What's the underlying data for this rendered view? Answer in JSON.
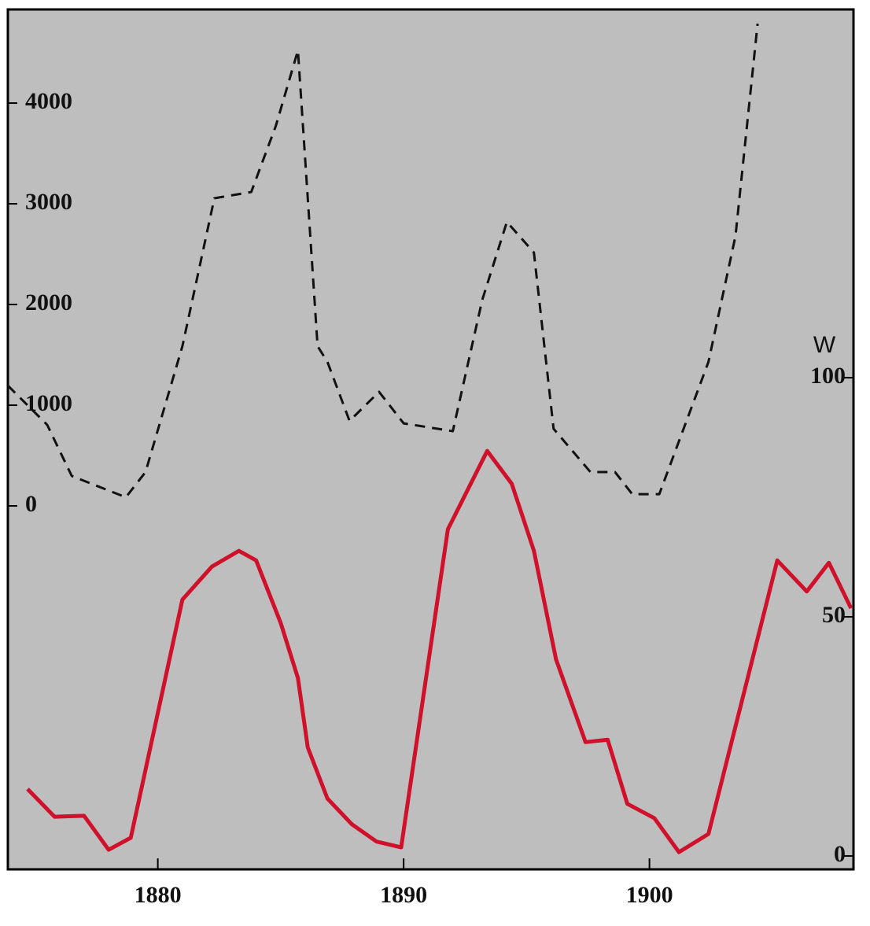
{
  "chart_data": {
    "type": "line",
    "y2label": "W",
    "xlim": [
      1873.9,
      1908.3
    ],
    "xticks": [
      1880,
      1890,
      1900
    ],
    "ylim": [
      -3609,
      4930
    ],
    "yticks": [
      0,
      1000,
      2000,
      3000,
      4000
    ],
    "y2lim": [
      -2.8,
      177
    ],
    "y2ticks": [
      0,
      50,
      100
    ],
    "series": [
      {
        "color": "#111111",
        "dashed": true,
        "x": [
          1873.9,
          1875.5,
          1876.5,
          1878.7,
          1879.5,
          1881.0,
          1882.3,
          1883.8,
          1884.8,
          1885.7,
          1886.5,
          1886.9,
          1887.8,
          1889.0,
          1890.0,
          1892.0,
          1893.2,
          1894.2,
          1895.3,
          1896.1,
          1897.6,
          1898.6,
          1899.3,
          1900.4,
          1902.4,
          1903.5,
          1904.4
        ],
        "values": [
          1195,
          805,
          297,
          86,
          336,
          1586,
          3055,
          3117,
          3773,
          4523,
          1586,
          1430,
          844,
          1133,
          820,
          742,
          2047,
          2820,
          2516,
          766,
          336,
          336,
          117,
          117,
          1430,
          2680,
          4789
        ]
      },
      {
        "color": "#d0112b",
        "dashed": false,
        "axis": "y2",
        "x": [
          1874.7,
          1875.8,
          1877.0,
          1878.0,
          1878.9,
          1881.0,
          1882.2,
          1883.3,
          1884.0,
          1885.0,
          1885.7,
          1886.1,
          1886.9,
          1887.9,
          1888.9,
          1889.9,
          1891.8,
          1893.4,
          1894.4,
          1895.3,
          1896.2,
          1897.4,
          1898.3,
          1899.1,
          1900.2,
          1901.2,
          1902.4,
          1905.2,
          1906.4,
          1907.3,
          1908.2
        ],
        "values": [
          14.0,
          8.2,
          8.4,
          1.3,
          3.8,
          53.6,
          60.5,
          63.8,
          61.8,
          48.7,
          37.2,
          22.7,
          12.0,
          6.6,
          3.0,
          1.8,
          68.3,
          84.7,
          77.8,
          63.8,
          41.1,
          23.8,
          24.3,
          10.9,
          7.9,
          0.8,
          4.6,
          61.8,
          55.3,
          61.3,
          51.8
        ]
      }
    ]
  }
}
